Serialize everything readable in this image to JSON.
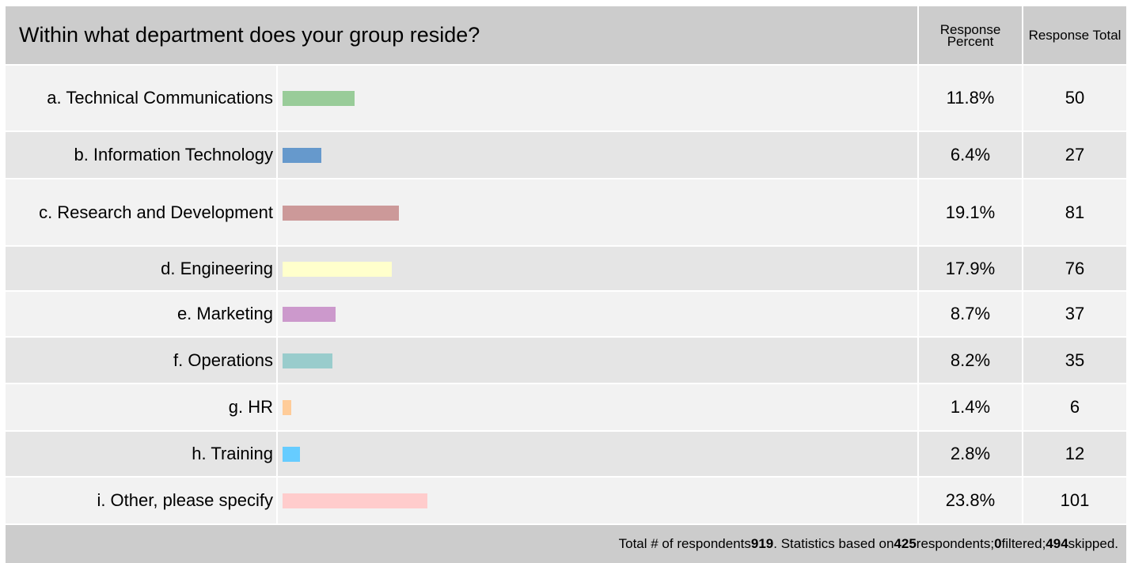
{
  "question": "Within what department does your group reside?",
  "headers": {
    "percent": "Response Percent",
    "total": "Response Total"
  },
  "chart_data": {
    "type": "bar",
    "categories": [
      "a. Technical Communications",
      "b. Information Technology",
      "c. Research and Development",
      "d. Engineering",
      "e. Marketing",
      "f. Operations",
      "g. HR",
      "h. Training",
      "i. Other, please specify"
    ],
    "values": [
      11.8,
      6.4,
      19.1,
      17.9,
      8.7,
      8.2,
      1.4,
      2.8,
      23.8
    ],
    "percent_labels": [
      "11.8%",
      "6.4%",
      "19.1%",
      "17.9%",
      "8.7%",
      "8.2%",
      "1.4%",
      "2.8%",
      "23.8%"
    ],
    "totals": [
      "50",
      "27",
      "81",
      "76",
      "37",
      "35",
      "6",
      "12",
      "101"
    ],
    "colors": [
      "#99cc99",
      "#6699cc",
      "#cc9999",
      "#ffffcc",
      "#cc99cc",
      "#99cccc",
      "#ffcc99",
      "#66ccff",
      "#ffcccc"
    ],
    "row_heights": [
      82,
      58,
      83,
      55,
      56,
      57,
      58,
      56,
      58
    ],
    "xlim": [
      0,
      100
    ]
  },
  "footer": {
    "p1": "Total # of respondents ",
    "v1": "919",
    "p2": ". Statistics based on ",
    "v2": "425",
    "p3": " respondents; ",
    "v3": "0",
    "p4": " filtered; ",
    "v4": "494",
    "p5": " skipped."
  }
}
